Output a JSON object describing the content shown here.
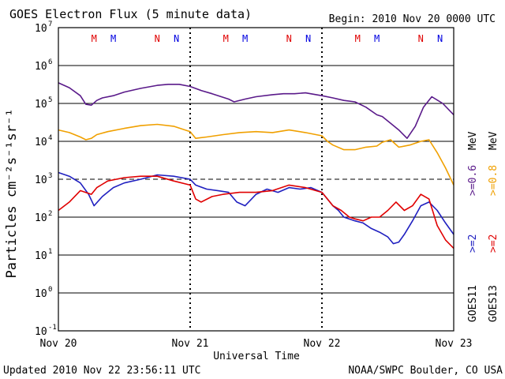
{
  "header": {
    "title": "GOES Electron Flux (5 minute data)",
    "begin": "Begin: 2010 Nov 20 0000 UTC"
  },
  "footer": {
    "updated": "Updated 2010 Nov 22 23:56:11 UTC",
    "credit": "NOAA/SWPC Boulder, CO USA"
  },
  "chart_data": {
    "type": "line",
    "title": "GOES Electron Flux (5 minute data)",
    "xlabel": "Universal Time",
    "ylabel": "Particles cm⁻²s⁻¹sr⁻¹",
    "yscale": "log",
    "ylim": [
      0.1,
      10000000
    ],
    "xlim": [
      "2010-11-20T00:00",
      "2010-11-23T00:00"
    ],
    "x_ticks": [
      "Nov 20",
      "Nov 21",
      "Nov 22",
      "Nov 23"
    ],
    "y_ticks": [
      {
        "base": "10",
        "exp": "7"
      },
      {
        "base": "10",
        "exp": "6"
      },
      {
        "base": "10",
        "exp": "5"
      },
      {
        "base": "10",
        "exp": "4"
      },
      {
        "base": "10",
        "exp": "3"
      },
      {
        "base": "10",
        "exp": "2"
      },
      {
        "base": "10",
        "exp": "1"
      },
      {
        "base": "10",
        "exp": "0"
      },
      {
        "base": "10",
        "exp": "-1"
      }
    ],
    "grid": "horizontal at each decade",
    "threshold_line": {
      "value": 1000,
      "style": "dashed"
    },
    "markers": [
      {
        "label": "M",
        "time": "2010-11-20T06:30",
        "color": "#e00000"
      },
      {
        "label": "M",
        "time": "2010-11-20T10:00",
        "color": "#0000e0"
      },
      {
        "label": "N",
        "time": "2010-11-20T18:00",
        "color": "#e00000"
      },
      {
        "label": "N",
        "time": "2010-11-20T21:30",
        "color": "#0000e0"
      },
      {
        "label": "M",
        "time": "2010-11-21T06:30",
        "color": "#e00000"
      },
      {
        "label": "M",
        "time": "2010-11-21T10:00",
        "color": "#0000e0"
      },
      {
        "label": "N",
        "time": "2010-11-21T18:00",
        "color": "#e00000"
      },
      {
        "label": "N",
        "time": "2010-11-21T21:30",
        "color": "#0000e0"
      },
      {
        "label": "M",
        "time": "2010-11-22T06:30",
        "color": "#e00000"
      },
      {
        "label": "M",
        "time": "2010-11-22T10:00",
        "color": "#0000e0"
      },
      {
        "label": "N",
        "time": "2010-11-22T18:00",
        "color": "#e00000"
      },
      {
        "label": "N",
        "time": "2010-11-22T21:30",
        "color": "#0000e0"
      }
    ],
    "legend": {
      "placement": "right",
      "satellites": [
        "GOES11",
        "GOES13"
      ],
      "energies": [
        {
          "label": ">=2",
          "unit": "MeV",
          "color": "#2020c0",
          "satellite": "GOES11"
        },
        {
          "label": ">=0.6",
          "unit": "MeV",
          "color": "#5a1a8a",
          "satellite": "GOES11"
        },
        {
          "label": ">=2",
          "unit": "MeV",
          "color": "#e00000",
          "satellite": "GOES13"
        },
        {
          "label": ">=0.8",
          "unit": "MeV",
          "color": "#f0a000",
          "satellite": "GOES13"
        }
      ]
    },
    "series": [
      {
        "name": "GOES11 >=0.6 MeV",
        "color": "#5a1a8a",
        "x": [
          "2010-11-20T00:00",
          "2010-11-20T02:00",
          "2010-11-20T04:00",
          "2010-11-20T05:00",
          "2010-11-20T06:00",
          "2010-11-20T07:00",
          "2010-11-20T08:00",
          "2010-11-20T10:00",
          "2010-11-20T12:00",
          "2010-11-20T15:00",
          "2010-11-20T18:00",
          "2010-11-20T20:00",
          "2010-11-20T22:00",
          "2010-11-21T00:00",
          "2010-11-21T02:00",
          "2010-11-21T04:00",
          "2010-11-21T07:00",
          "2010-11-21T08:00",
          "2010-11-21T10:00",
          "2010-11-21T12:00",
          "2010-11-21T15:00",
          "2010-11-21T17:00",
          "2010-11-21T19:00",
          "2010-11-21T21:00",
          "2010-11-22T00:00",
          "2010-11-22T02:00",
          "2010-11-22T04:00",
          "2010-11-22T06:00",
          "2010-11-22T08:00",
          "2010-11-22T10:00",
          "2010-11-22T11:00",
          "2010-11-22T12:30",
          "2010-11-22T14:00",
          "2010-11-22T15:30",
          "2010-11-22T17:00",
          "2010-11-22T18:30",
          "2010-11-22T20:00",
          "2010-11-22T22:00",
          "2010-11-23T00:00"
        ],
        "y": [
          350000,
          260000,
          160000,
          95000,
          90000,
          120000,
          140000,
          160000,
          200000,
          250000,
          300000,
          320000,
          320000,
          280000,
          220000,
          180000,
          130000,
          110000,
          130000,
          150000,
          170000,
          180000,
          180000,
          190000,
          160000,
          140000,
          120000,
          110000,
          80000,
          50000,
          45000,
          30000,
          20000,
          12000,
          25000,
          80000,
          150000,
          100000,
          50000
        ]
      },
      {
        "name": "GOES13 >=0.8 MeV",
        "color": "#f0a000",
        "x": [
          "2010-11-20T00:00",
          "2010-11-20T02:00",
          "2010-11-20T04:00",
          "2010-11-20T05:00",
          "2010-11-20T06:00",
          "2010-11-20T07:00",
          "2010-11-20T09:00",
          "2010-11-20T12:00",
          "2010-11-20T15:00",
          "2010-11-20T18:00",
          "2010-11-20T21:00",
          "2010-11-21T00:00",
          "2010-11-21T01:00",
          "2010-11-21T03:00",
          "2010-11-21T06:00",
          "2010-11-21T09:00",
          "2010-11-21T12:00",
          "2010-11-21T15:00",
          "2010-11-21T18:00",
          "2010-11-21T21:00",
          "2010-11-22T00:00",
          "2010-11-22T01:00",
          "2010-11-22T02:00",
          "2010-11-22T04:00",
          "2010-11-22T06:00",
          "2010-11-22T08:00",
          "2010-11-22T10:00",
          "2010-11-22T11:00",
          "2010-11-22T12:30",
          "2010-11-22T14:00",
          "2010-11-22T16:00",
          "2010-11-22T18:00",
          "2010-11-22T19:30",
          "2010-11-22T21:00",
          "2010-11-22T22:30",
          "2010-11-23T00:00"
        ],
        "y": [
          20000,
          17000,
          13000,
          11000,
          12000,
          15000,
          18000,
          22000,
          26000,
          28000,
          25000,
          18000,
          12000,
          13000,
          15000,
          17000,
          18000,
          17000,
          20000,
          17000,
          14000,
          10000,
          8000,
          6000,
          6000,
          7000,
          7500,
          9500,
          11000,
          7000,
          8000,
          10000,
          11000,
          5000,
          2000,
          700
        ]
      },
      {
        "name": "GOES11 >=2 MeV",
        "color": "#2020c0",
        "x": [
          "2010-11-20T00:00",
          "2010-11-20T02:00",
          "2010-11-20T04:00",
          "2010-11-20T05:30",
          "2010-11-20T06:30",
          "2010-11-20T08:00",
          "2010-11-20T10:00",
          "2010-11-20T12:00",
          "2010-11-20T15:00",
          "2010-11-20T18:00",
          "2010-11-20T21:00",
          "2010-11-21T00:00",
          "2010-11-21T01:00",
          "2010-11-21T03:00",
          "2010-11-21T05:00",
          "2010-11-21T07:00",
          "2010-11-21T08:30",
          "2010-11-21T10:00",
          "2010-11-21T12:00",
          "2010-11-21T14:00",
          "2010-11-21T16:00",
          "2010-11-21T18:00",
          "2010-11-21T20:00",
          "2010-11-21T22:00",
          "2010-11-22T00:00",
          "2010-11-22T01:00",
          "2010-11-22T02:00",
          "2010-11-22T03:00",
          "2010-11-22T04:00",
          "2010-11-22T06:00",
          "2010-11-22T07:30",
          "2010-11-22T09:00",
          "2010-11-22T10:30",
          "2010-11-22T12:00",
          "2010-11-22T13:00",
          "2010-11-22T14:00",
          "2010-11-22T15:00",
          "2010-11-22T16:30",
          "2010-11-22T18:00",
          "2010-11-22T19:30",
          "2010-11-22T21:00",
          "2010-11-22T22:30",
          "2010-11-23T00:00"
        ],
        "y": [
          1500,
          1200,
          800,
          400,
          200,
          350,
          600,
          800,
          1000,
          1300,
          1200,
          1000,
          700,
          550,
          500,
          450,
          250,
          200,
          400,
          550,
          450,
          600,
          550,
          600,
          450,
          300,
          200,
          150,
          100,
          80,
          70,
          50,
          40,
          30,
          20,
          22,
          35,
          80,
          200,
          250,
          150,
          70,
          35
        ]
      },
      {
        "name": "GOES13 >=2 MeV",
        "color": "#e00000",
        "x": [
          "2010-11-20T00:00",
          "2010-11-20T02:00",
          "2010-11-20T04:00",
          "2010-11-20T06:00",
          "2010-11-20T07:00",
          "2010-11-20T09:00",
          "2010-11-20T12:00",
          "2010-11-20T15:00",
          "2010-11-20T18:00",
          "2010-11-20T21:00",
          "2010-11-21T00:00",
          "2010-11-21T01:00",
          "2010-11-21T02:00",
          "2010-11-21T04:00",
          "2010-11-21T06:00",
          "2010-11-21T09:00",
          "2010-11-21T12:00",
          "2010-11-21T15:00",
          "2010-11-21T18:00",
          "2010-11-21T21:00",
          "2010-11-22T00:00",
          "2010-11-22T01:00",
          "2010-11-22T02:00",
          "2010-11-22T03:30",
          "2010-11-22T05:00",
          "2010-11-22T06:00",
          "2010-11-22T07:30",
          "2010-11-22T09:00",
          "2010-11-22T10:30",
          "2010-11-22T12:00",
          "2010-11-22T13:30",
          "2010-11-22T15:00",
          "2010-11-22T16:30",
          "2010-11-22T18:00",
          "2010-11-22T19:30",
          "2010-11-22T21:00",
          "2010-11-22T22:30",
          "2010-11-23T00:00"
        ],
        "y": [
          150,
          250,
          500,
          400,
          600,
          900,
          1100,
          1200,
          1200,
          900,
          700,
          300,
          250,
          350,
          400,
          450,
          450,
          500,
          700,
          600,
          450,
          300,
          200,
          150,
          100,
          90,
          80,
          100,
          100,
          150,
          250,
          150,
          200,
          400,
          300,
          60,
          25,
          15
        ]
      }
    ]
  }
}
